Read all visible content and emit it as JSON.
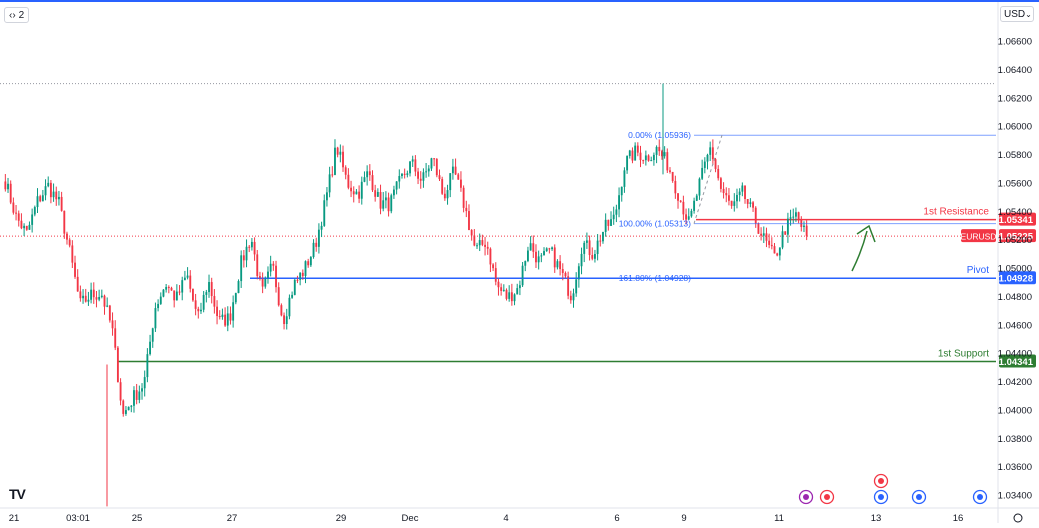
{
  "toolbar": {
    "collapse_icon": "chevrons-icon",
    "layout_count": "2",
    "currency": "USD"
  },
  "logo": "TV",
  "chart_data": {
    "type": "candlestick",
    "symbol": "EURUSD",
    "ylim": [
      1.033,
      1.068
    ],
    "y_ticks": [
      "1.06600",
      "1.06400",
      "1.06200",
      "1.06000",
      "1.05800",
      "1.05600",
      "1.05400",
      "1.05200",
      "1.05000",
      "1.04800",
      "1.04600",
      "1.04400",
      "1.04200",
      "1.04000",
      "1.03800",
      "1.03600",
      "1.03400"
    ],
    "x_ticks": [
      "21",
      "03:01",
      "25",
      "27",
      "29",
      "Dec",
      "4",
      "6",
      "9",
      "11",
      "13",
      "16"
    ],
    "price_colors": {
      "up": "#089981",
      "down": "#f23645"
    },
    "current_price": {
      "label": "EURUSD",
      "value": "1.05225",
      "color": "#f23645"
    },
    "levels": [
      {
        "name": "1st Resistance",
        "value": "1.05341",
        "color": "#f23645"
      },
      {
        "name": "Pivot",
        "value": "1.04928",
        "color": "#2962ff"
      },
      {
        "name": "1st Support",
        "value": "1.04341",
        "color": "#2e7d32"
      }
    ],
    "fibonacci": [
      {
        "label": "0.00% (1.05936)",
        "value": 1.05936
      },
      {
        "label": "100.00% (1.05313)",
        "value": 1.05313
      },
      {
        "label": "161.80% (1.04928)",
        "value": 1.04928
      }
    ],
    "dotted_high": 1.063,
    "anchor_prices": [
      1.0561,
      1.0536,
      1.0524,
      1.0547,
      1.0558,
      1.0546,
      1.0512,
      1.0474,
      1.0481,
      1.0482,
      1.0457,
      1.0396,
      1.0409,
      1.0419,
      1.0472,
      1.0489,
      1.0478,
      1.0495,
      1.0463,
      1.0491,
      1.0462,
      1.0465,
      1.0502,
      1.0522,
      1.0481,
      1.0502,
      1.0463,
      1.0488,
      1.0499,
      1.0516,
      1.0548,
      1.0586,
      1.056,
      1.0552,
      1.0568,
      1.0546,
      1.0545,
      1.0562,
      1.0574,
      1.0561,
      1.0578,
      1.055,
      1.0568,
      1.0543,
      1.0512,
      1.0519,
      1.0487,
      1.0479,
      1.0486,
      1.0518,
      1.0504,
      1.0512,
      1.0497,
      1.048,
      1.0518,
      1.051,
      1.0527,
      1.0535,
      1.0574,
      1.0582,
      1.0578,
      1.0584,
      1.0573,
      1.0552,
      1.0531,
      1.056,
      1.0585,
      1.0555,
      1.0542,
      1.0553,
      1.0537,
      1.052,
      1.0507,
      1.0528,
      1.0537,
      1.0522
    ],
    "event_icons": [
      "lightning-icon",
      "us-flag-icon",
      "us-flag-icon",
      "eu-flag-icon",
      "eu-flag-icon",
      "eu-flag-icon"
    ]
  }
}
